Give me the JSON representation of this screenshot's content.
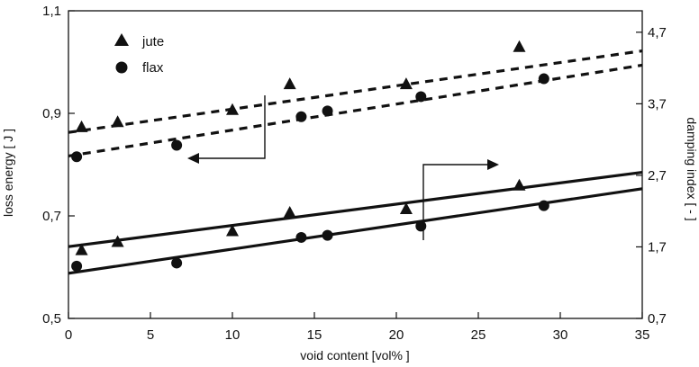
{
  "chart_data": {
    "type": "scatter",
    "xlabel": "void content [vol% ]",
    "ylabel_left": "loss energy  [ J ]",
    "ylabel_right": "damping index [ - ]",
    "xlim": [
      0,
      35
    ],
    "ylim_left": [
      0.5,
      1.1
    ],
    "ylim_right": [
      0.7,
      5.0
    ],
    "x_ticks": [
      {
        "value": 0,
        "label": "0"
      },
      {
        "value": 5,
        "label": "5"
      },
      {
        "value": 10,
        "label": "10"
      },
      {
        "value": 15,
        "label": "15"
      },
      {
        "value": 20,
        "label": "20"
      },
      {
        "value": 25,
        "label": "25"
      },
      {
        "value": 30,
        "label": "30"
      },
      {
        "value": 35,
        "label": "35"
      }
    ],
    "y_left_ticks": [
      {
        "value": 0.5,
        "label": "0,5"
      },
      {
        "value": 0.7,
        "label": "0,7"
      },
      {
        "value": 0.9,
        "label": "0,9"
      },
      {
        "value": 1.1,
        "label": "1,1"
      }
    ],
    "y_right_ticks": [
      {
        "value": 0.7,
        "label": "0,7"
      },
      {
        "value": 1.7,
        "label": "1,7"
      },
      {
        "value": 2.7,
        "label": "2,7"
      },
      {
        "value": 3.7,
        "label": "3,7"
      },
      {
        "value": 4.7,
        "label": "4,7"
      }
    ],
    "legend": [
      {
        "name": "jute",
        "marker": "triangle"
      },
      {
        "name": "flax",
        "marker": "circle"
      }
    ],
    "series": [
      {
        "name": "jute",
        "marker": "triangle",
        "axis": "right",
        "points": [
          [
            0.8,
            3.38
          ],
          [
            3,
            3.45
          ],
          [
            10,
            3.62
          ],
          [
            13.5,
            3.98
          ],
          [
            20.6,
            3.98
          ],
          [
            27.5,
            4.5
          ]
        ],
        "trend": {
          "x": [
            0,
            35
          ],
          "y": [
            3.3,
            4.44
          ],
          "style": "dashed"
        }
      },
      {
        "name": "flax",
        "marker": "circle",
        "axis": "right",
        "points": [
          [
            0.5,
            2.96
          ],
          [
            6.6,
            3.12
          ],
          [
            14.2,
            3.52
          ],
          [
            15.8,
            3.6
          ],
          [
            21.5,
            3.8
          ],
          [
            29,
            4.05
          ]
        ],
        "trend": {
          "x": [
            0,
            35
          ],
          "y": [
            2.97,
            4.24
          ],
          "style": "dashed"
        }
      },
      {
        "name": "jute",
        "marker": "triangle",
        "axis": "left",
        "points": [
          [
            0.8,
            0.634
          ],
          [
            3,
            0.65
          ],
          [
            10,
            0.671
          ],
          [
            13.5,
            0.707
          ],
          [
            20.6,
            0.714
          ],
          [
            27.5,
            0.76
          ]
        ],
        "trend": {
          "x": [
            0,
            35
          ],
          "y": [
            0.64,
            0.785
          ],
          "style": "solid"
        }
      },
      {
        "name": "flax",
        "marker": "circle",
        "axis": "left",
        "points": [
          [
            0.5,
            0.602
          ],
          [
            6.6,
            0.608
          ],
          [
            14.2,
            0.658
          ],
          [
            15.8,
            0.662
          ],
          [
            21.5,
            0.68
          ],
          [
            29,
            0.72
          ]
        ],
        "trend": {
          "x": [
            0,
            35
          ],
          "y": [
            0.588,
            0.753
          ],
          "style": "solid"
        }
      }
    ],
    "annotations": [
      {
        "type": "axis-arrow",
        "direction": "left",
        "refers_to": "loss energy axis"
      },
      {
        "type": "axis-arrow",
        "direction": "right",
        "refers_to": "damping index axis"
      }
    ],
    "grid": false
  }
}
